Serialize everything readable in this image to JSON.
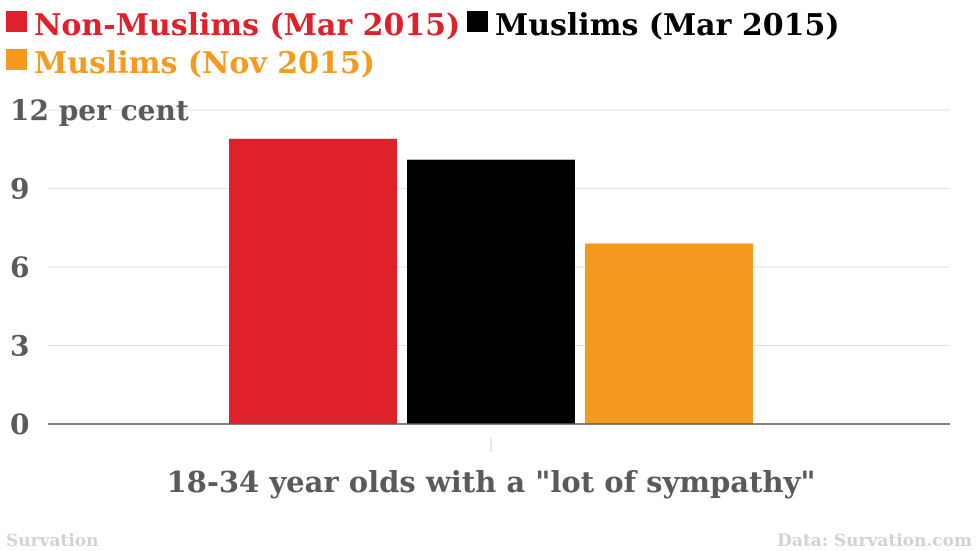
{
  "chart_data": {
    "type": "bar",
    "categories": [
      "18-34 year olds with a \"lot of sympathy\""
    ],
    "series": [
      {
        "name": "Non-Muslims (Mar 2015)",
        "values": [
          10.9
        ],
        "color": "#e0202a"
      },
      {
        "name": "Muslims (Mar 2015)",
        "values": [
          10.1
        ],
        "color": "#000000"
      },
      {
        "name": "Muslims (Nov 2015)",
        "values": [
          6.9
        ],
        "color": "#f59a1f"
      }
    ],
    "xlabel": "18-34 year olds with a \"lot of sympathy\"",
    "ylim": [
      0,
      12
    ],
    "yticks": [
      0,
      3,
      6,
      9,
      12
    ],
    "ytick_labels": [
      "0",
      "3",
      "6",
      "9",
      "12 per cent"
    ],
    "grid": true,
    "legend_position": "top-left"
  },
  "footer": {
    "source_brand": "Survation",
    "data_credit": "Data: Survation.com"
  },
  "colors": {
    "grid": "#e2e2e2",
    "axis": "#5a5a5a",
    "tick_text": "#5a5a5a",
    "footer_text": "#d2d2d2"
  }
}
